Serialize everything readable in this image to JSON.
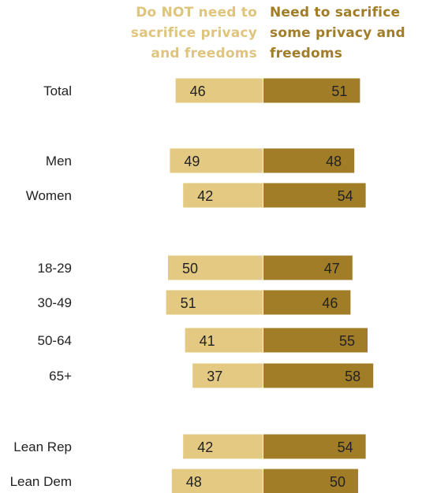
{
  "colors": {
    "not_need": "#e3c982",
    "need": "#a17d28",
    "header_not_need": "#dfc47e",
    "header_need": "#a17d28"
  },
  "headers": {
    "not_need": [
      "Do NOT need to",
      "sacrifice privacy",
      "and freedoms"
    ],
    "need": [
      "Need to sacrifice",
      "some privacy and",
      "freedoms"
    ]
  },
  "chart_data": {
    "type": "bar",
    "orientation": "horizontal-diverging",
    "categories": [
      "Total",
      "Men",
      "Women",
      "18-29",
      "30-49",
      "50-64",
      "65+",
      "Lean Rep",
      "Lean Dem"
    ],
    "groups": [
      [
        "Total"
      ],
      [
        "Men",
        "Women"
      ],
      [
        "18-29",
        "30-49",
        "50-64",
        "65+"
      ],
      [
        "Lean Rep",
        "Lean Dem"
      ]
    ],
    "series": [
      {
        "name": "Do NOT need to sacrifice privacy and freedoms",
        "values": [
          46,
          49,
          42,
          50,
          51,
          41,
          37,
          42,
          48
        ]
      },
      {
        "name": "Need to sacrifice some privacy and freedoms",
        "values": [
          51,
          48,
          54,
          47,
          46,
          55,
          58,
          54,
          50
        ]
      }
    ]
  }
}
